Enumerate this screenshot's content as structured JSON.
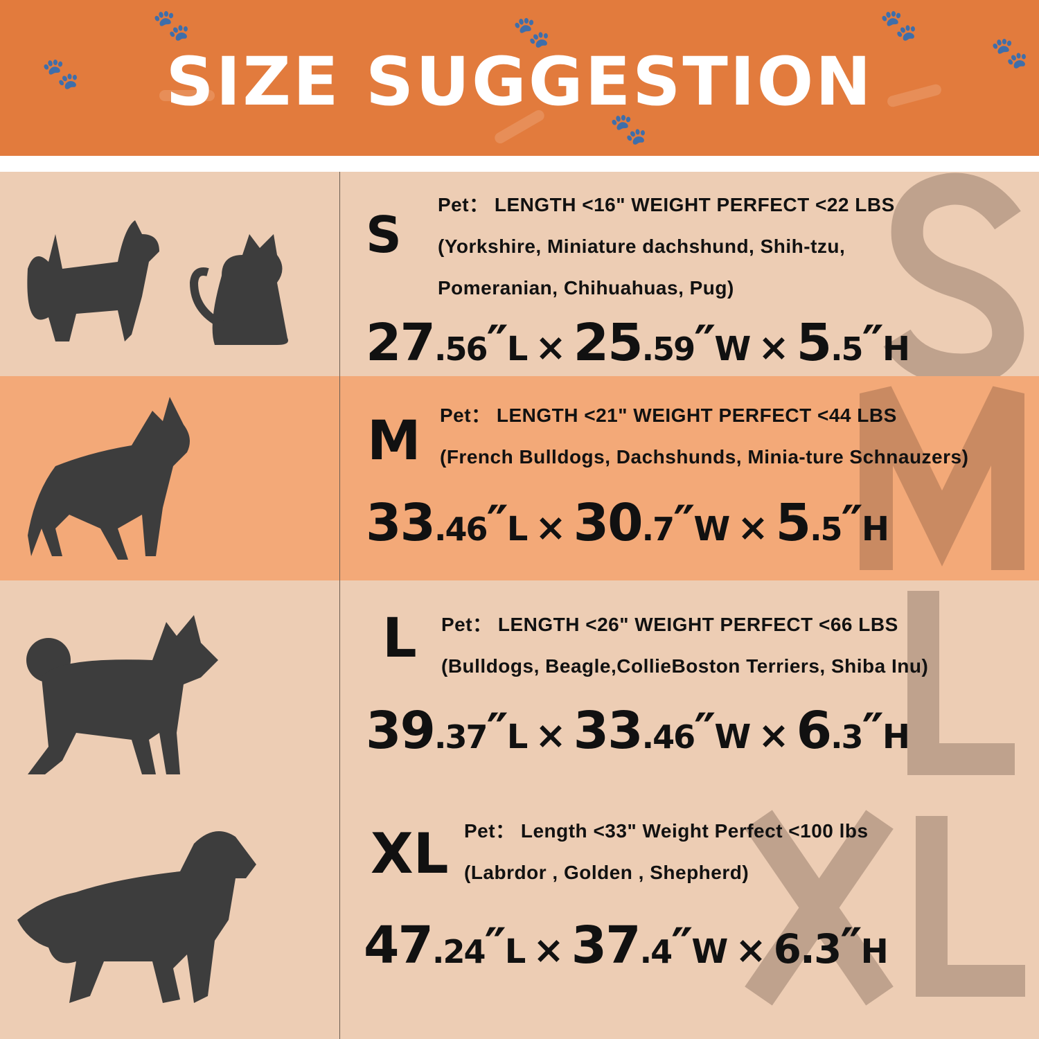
{
  "header": {
    "title": "SIZE SUGGESTION",
    "background": "#E27B3D"
  },
  "symbols": {
    "quote": "″",
    "times": "×"
  },
  "colors": {
    "row_light": "#EDCDB4",
    "row_accent": "#F3A978",
    "silhouette": "#3D3D3D",
    "watermark": "#BFA28D"
  },
  "sizes": [
    {
      "size": "S",
      "pets_icon": "small-dog-and-cat-silhouette-icon",
      "spec": "Pet： LENGTH <16\"  WEIGHT PERFECT <22 LBS",
      "breeds": [
        "(Yorkshire, Miniature dachshund, Shih-tzu,",
        "Pomeranian, Chihuahuas, Pug)"
      ],
      "dims": [
        {
          "int": "27",
          "dec": ".56",
          "unit": "L"
        },
        {
          "int": "25",
          "dec": ".59",
          "unit": "W"
        },
        {
          "int": "5",
          "dec": ".5",
          "unit": "H"
        }
      ]
    },
    {
      "size": "M",
      "pets_icon": "french-bulldog-silhouette-icon",
      "spec": "Pet： LENGTH <21\"  WEIGHT PERFECT <44 LBS",
      "breeds": [
        "(French Bulldogs, Dachshunds, Minia-ture Schnauzers)"
      ],
      "dims": [
        {
          "int": "33",
          "dec": ".46",
          "unit": "L"
        },
        {
          "int": "30",
          "dec": ".7",
          "unit": "W"
        },
        {
          "int": "5",
          "dec": ".5",
          "unit": "H"
        }
      ]
    },
    {
      "size": "L",
      "pets_icon": "shiba-inu-silhouette-icon",
      "spec": "Pet： LENGTH <26\" WEIGHT PERFECT <66 LBS",
      "breeds": [
        "(Bulldogs, Beagle,CollieBoston Terriers, Shiba Inu)"
      ],
      "dims": [
        {
          "int": "39",
          "dec": ".37",
          "unit": "L"
        },
        {
          "int": "33",
          "dec": ".46",
          "unit": "W"
        },
        {
          "int": "6",
          "dec": ".3",
          "unit": "H"
        }
      ]
    },
    {
      "size": "XL",
      "pets_icon": "golden-retriever-silhouette-icon",
      "spec": "Pet： Length <33\"  Weight Perfect <100 lbs",
      "breeds": [
        "(Labrdor , Golden ,  Shepherd)"
      ],
      "dims": [
        {
          "int": "47",
          "dec": ".24",
          "unit": "L"
        },
        {
          "int": "37",
          "dec": ".4",
          "unit": "W"
        },
        {
          "int": "6.3",
          "dec": "",
          "unit": "H"
        }
      ]
    }
  ]
}
